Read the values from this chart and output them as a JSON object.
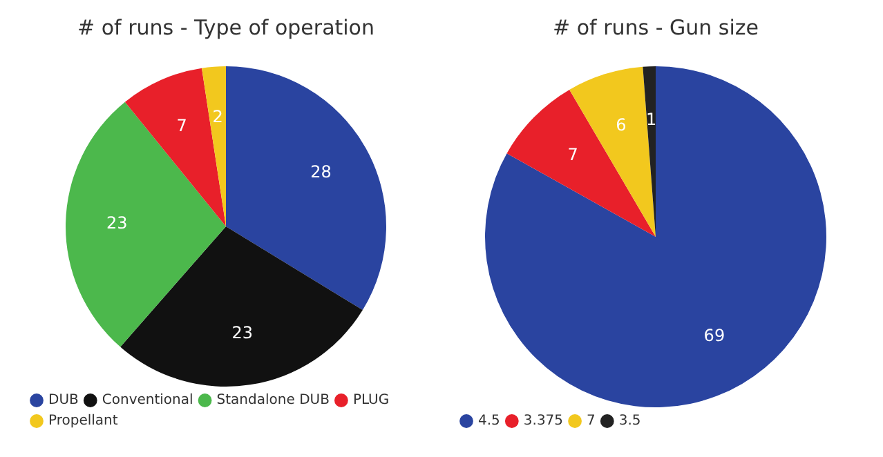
{
  "chart_data": [
    {
      "type": "pie",
      "title": "# of runs - Type of operation",
      "categories": [
        "DUB",
        "Conventional",
        "Standalone DUB",
        "PLUG",
        "Propellant"
      ],
      "values": [
        28,
        23,
        23,
        7,
        2
      ],
      "colors": [
        "#2a44a0",
        "#111111",
        "#4cb84c",
        "#e8202a",
        "#f2c81e"
      ],
      "data_labels": true,
      "legend": "bottom"
    },
    {
      "type": "pie",
      "title": "# of runs - Gun size",
      "categories": [
        "4.5",
        "3.375",
        "7",
        "3.5"
      ],
      "values": [
        69,
        7,
        6,
        1
      ],
      "colors": [
        "#2a44a0",
        "#e8202a",
        "#f2c81e",
        "#222222"
      ],
      "data_labels": true,
      "legend": "bottom"
    }
  ]
}
